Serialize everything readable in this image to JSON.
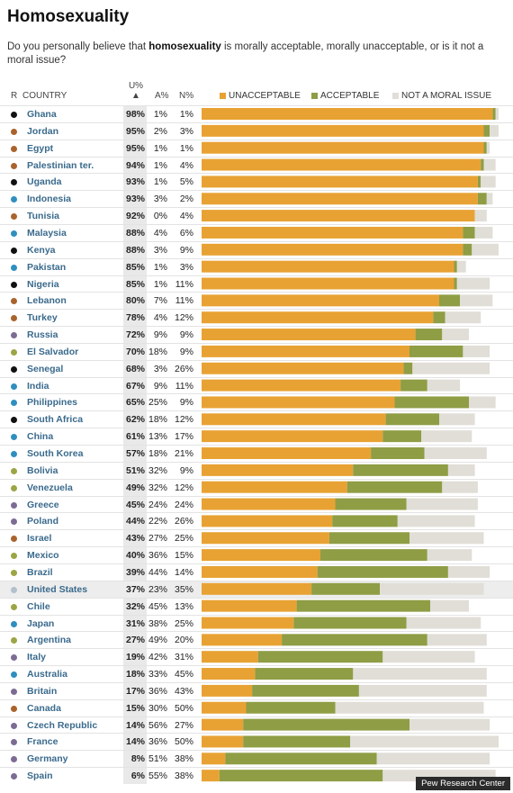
{
  "title": "Homosexuality",
  "question_pre": "Do you personally believe that ",
  "question_bold": "homosexuality",
  "question_post": " is morally acceptable, morally unacceptable, or is it not a moral issue?",
  "headers": {
    "r": "R",
    "country": "COUNTRY",
    "u": "U%",
    "sort": "▲",
    "a": "A%",
    "n": "N%"
  },
  "source": "Pew Research Center",
  "colors": {
    "unacceptable": "#e8a233",
    "acceptable": "#8f9d45",
    "not_moral": "#e0ded7",
    "region_asia": "#2f8fbf",
    "region_mideast": "#a9632d",
    "region_africa": "#111111",
    "region_latam": "#9ca545",
    "region_europe": "#7c6c94",
    "region_us": "#b3c0cc"
  },
  "chart_data": {
    "type": "bar",
    "stacked": true,
    "orientation": "horizontal",
    "xlim": [
      0,
      100
    ],
    "series": [
      {
        "name": "UNACCEPTABLE",
        "color": "#e8a233"
      },
      {
        "name": "ACCEPTABLE",
        "color": "#8f9d45"
      },
      {
        "name": "NOT A MORAL ISSUE",
        "color": "#e0ded7"
      }
    ],
    "rows": [
      {
        "country": "Ghana",
        "u": 98,
        "a": 1,
        "n": 1,
        "region": "region_africa"
      },
      {
        "country": "Jordan",
        "u": 95,
        "a": 2,
        "n": 3,
        "region": "region_mideast"
      },
      {
        "country": "Egypt",
        "u": 95,
        "a": 1,
        "n": 1,
        "region": "region_mideast"
      },
      {
        "country": "Palestinian ter.",
        "u": 94,
        "a": 1,
        "n": 4,
        "region": "region_mideast"
      },
      {
        "country": "Uganda",
        "u": 93,
        "a": 1,
        "n": 5,
        "region": "region_africa"
      },
      {
        "country": "Indonesia",
        "u": 93,
        "a": 3,
        "n": 2,
        "region": "region_asia"
      },
      {
        "country": "Tunisia",
        "u": 92,
        "a": 0,
        "n": 4,
        "region": "region_mideast"
      },
      {
        "country": "Malaysia",
        "u": 88,
        "a": 4,
        "n": 6,
        "region": "region_asia"
      },
      {
        "country": "Kenya",
        "u": 88,
        "a": 3,
        "n": 9,
        "region": "region_africa"
      },
      {
        "country": "Pakistan",
        "u": 85,
        "a": 1,
        "n": 3,
        "region": "region_asia"
      },
      {
        "country": "Nigeria",
        "u": 85,
        "a": 1,
        "n": 11,
        "region": "region_africa"
      },
      {
        "country": "Lebanon",
        "u": 80,
        "a": 7,
        "n": 11,
        "region": "region_mideast"
      },
      {
        "country": "Turkey",
        "u": 78,
        "a": 4,
        "n": 12,
        "region": "region_mideast"
      },
      {
        "country": "Russia",
        "u": 72,
        "a": 9,
        "n": 9,
        "region": "region_europe"
      },
      {
        "country": "El Salvador",
        "u": 70,
        "a": 18,
        "n": 9,
        "region": "region_latam"
      },
      {
        "country": "Senegal",
        "u": 68,
        "a": 3,
        "n": 26,
        "region": "region_africa"
      },
      {
        "country": "India",
        "u": 67,
        "a": 9,
        "n": 11,
        "region": "region_asia"
      },
      {
        "country": "Philippines",
        "u": 65,
        "a": 25,
        "n": 9,
        "region": "region_asia"
      },
      {
        "country": "South Africa",
        "u": 62,
        "a": 18,
        "n": 12,
        "region": "region_africa"
      },
      {
        "country": "China",
        "u": 61,
        "a": 13,
        "n": 17,
        "region": "region_asia"
      },
      {
        "country": "South Korea",
        "u": 57,
        "a": 18,
        "n": 21,
        "region": "region_asia"
      },
      {
        "country": "Bolivia",
        "u": 51,
        "a": 32,
        "n": 9,
        "region": "region_latam"
      },
      {
        "country": "Venezuela",
        "u": 49,
        "a": 32,
        "n": 12,
        "region": "region_latam"
      },
      {
        "country": "Greece",
        "u": 45,
        "a": 24,
        "n": 24,
        "region": "region_europe"
      },
      {
        "country": "Poland",
        "u": 44,
        "a": 22,
        "n": 26,
        "region": "region_europe"
      },
      {
        "country": "Israel",
        "u": 43,
        "a": 27,
        "n": 25,
        "region": "region_mideast"
      },
      {
        "country": "Mexico",
        "u": 40,
        "a": 36,
        "n": 15,
        "region": "region_latam"
      },
      {
        "country": "Brazil",
        "u": 39,
        "a": 44,
        "n": 14,
        "region": "region_latam"
      },
      {
        "country": "United States",
        "u": 37,
        "a": 23,
        "n": 35,
        "region": "region_us",
        "highlight": true
      },
      {
        "country": "Chile",
        "u": 32,
        "a": 45,
        "n": 13,
        "region": "region_latam"
      },
      {
        "country": "Japan",
        "u": 31,
        "a": 38,
        "n": 25,
        "region": "region_asia"
      },
      {
        "country": "Argentina",
        "u": 27,
        "a": 49,
        "n": 20,
        "region": "region_latam"
      },
      {
        "country": "Italy",
        "u": 19,
        "a": 42,
        "n": 31,
        "region": "region_europe"
      },
      {
        "country": "Australia",
        "u": 18,
        "a": 33,
        "n": 45,
        "region": "region_asia"
      },
      {
        "country": "Britain",
        "u": 17,
        "a": 36,
        "n": 43,
        "region": "region_europe"
      },
      {
        "country": "Canada",
        "u": 15,
        "a": 30,
        "n": 50,
        "region": "region_mideast"
      },
      {
        "country": "Czech Republic",
        "u": 14,
        "a": 56,
        "n": 27,
        "region": "region_europe"
      },
      {
        "country": "France",
        "u": 14,
        "a": 36,
        "n": 50,
        "region": "region_europe"
      },
      {
        "country": "Germany",
        "u": 8,
        "a": 51,
        "n": 38,
        "region": "region_europe"
      },
      {
        "country": "Spain",
        "u": 6,
        "a": 55,
        "n": 38,
        "region": "region_europe"
      }
    ]
  }
}
